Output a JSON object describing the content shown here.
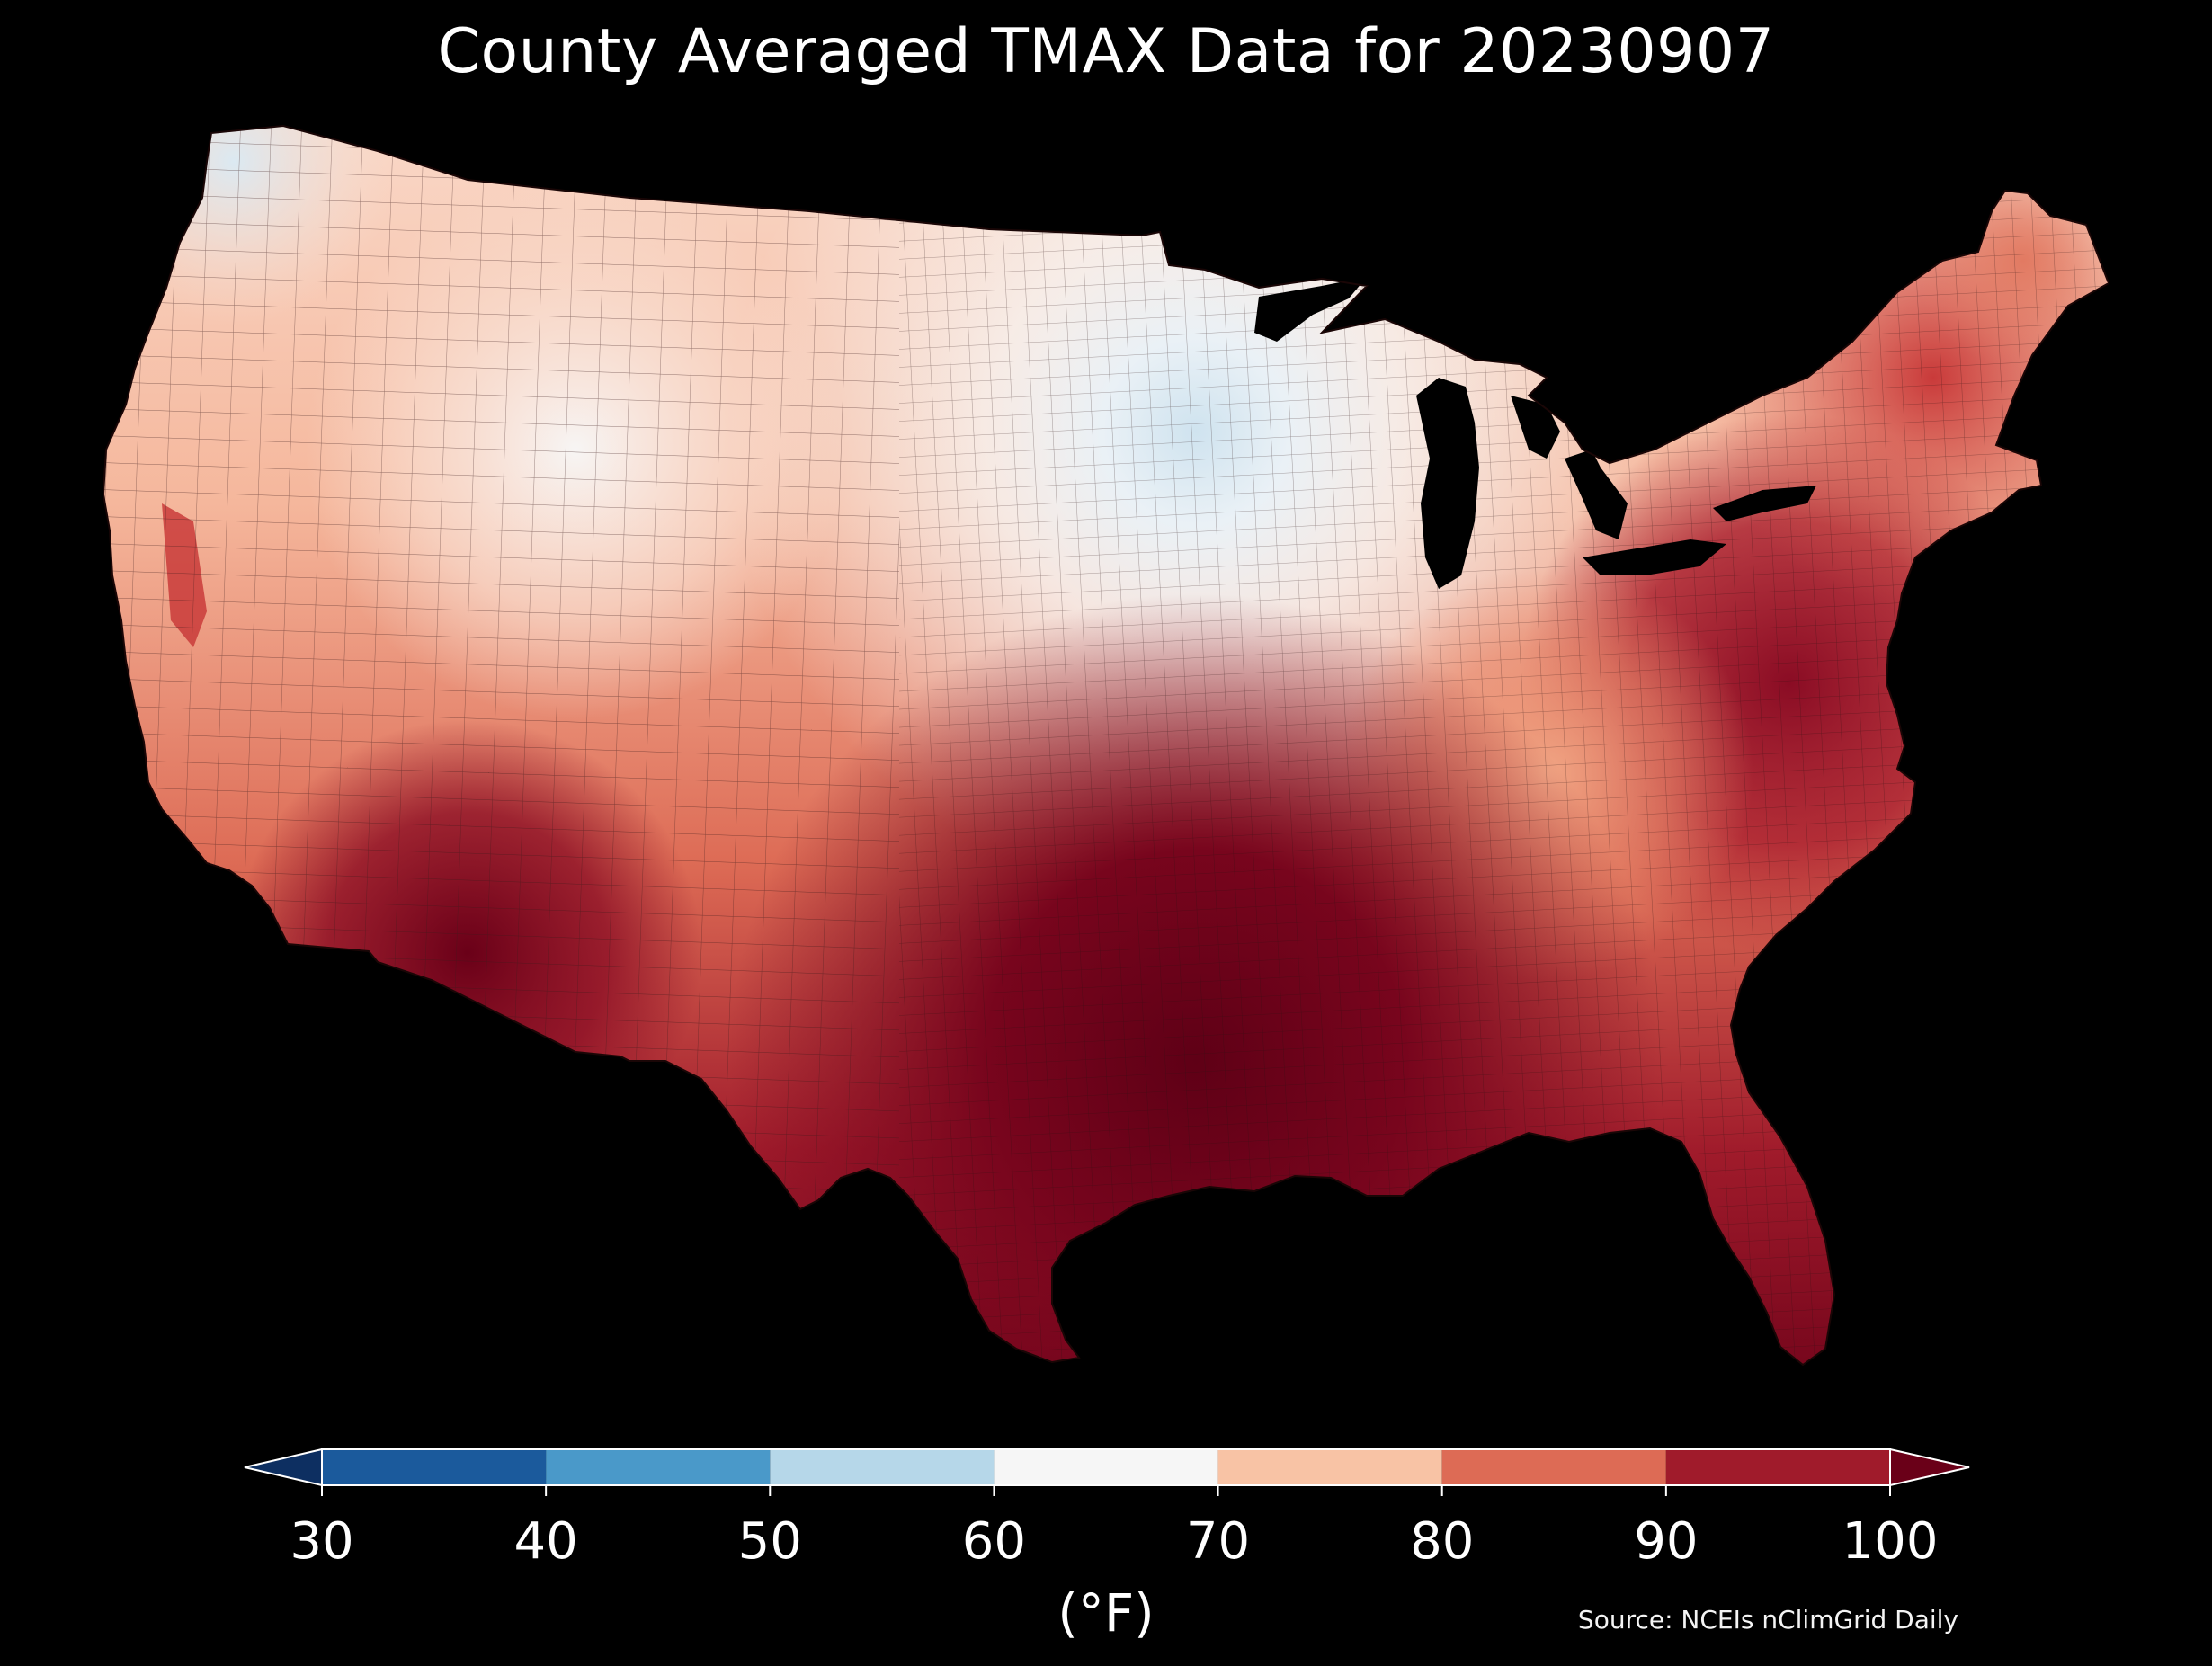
{
  "title": "County Averaged TMAX Data for 20230907",
  "colorbar": {
    "ticks": [
      "30",
      "40",
      "50",
      "60",
      "70",
      "80",
      "90",
      "100"
    ],
    "unit": "(°F)",
    "bins": [
      {
        "range": [
          30,
          40
        ],
        "color": "#1b5a9c"
      },
      {
        "range": [
          40,
          50
        ],
        "color": "#4a99c9"
      },
      {
        "range": [
          50,
          60
        ],
        "color": "#b6d7e9"
      },
      {
        "range": [
          60,
          70
        ],
        "color": "#f6f6f6"
      },
      {
        "range": [
          70,
          80
        ],
        "color": "#f8c3a5"
      },
      {
        "range": [
          80,
          90
        ],
        "color": "#dd6b55"
      },
      {
        "range": [
          90,
          100
        ],
        "color": "#a01b2b"
      }
    ],
    "under_color": "#0d2f61",
    "over_color": "#6a0018"
  },
  "source": "Source: NCEIs nClimGrid Daily",
  "colors": {
    "background": "#000000",
    "water": "#000000",
    "map_border": "#2a1010"
  }
}
